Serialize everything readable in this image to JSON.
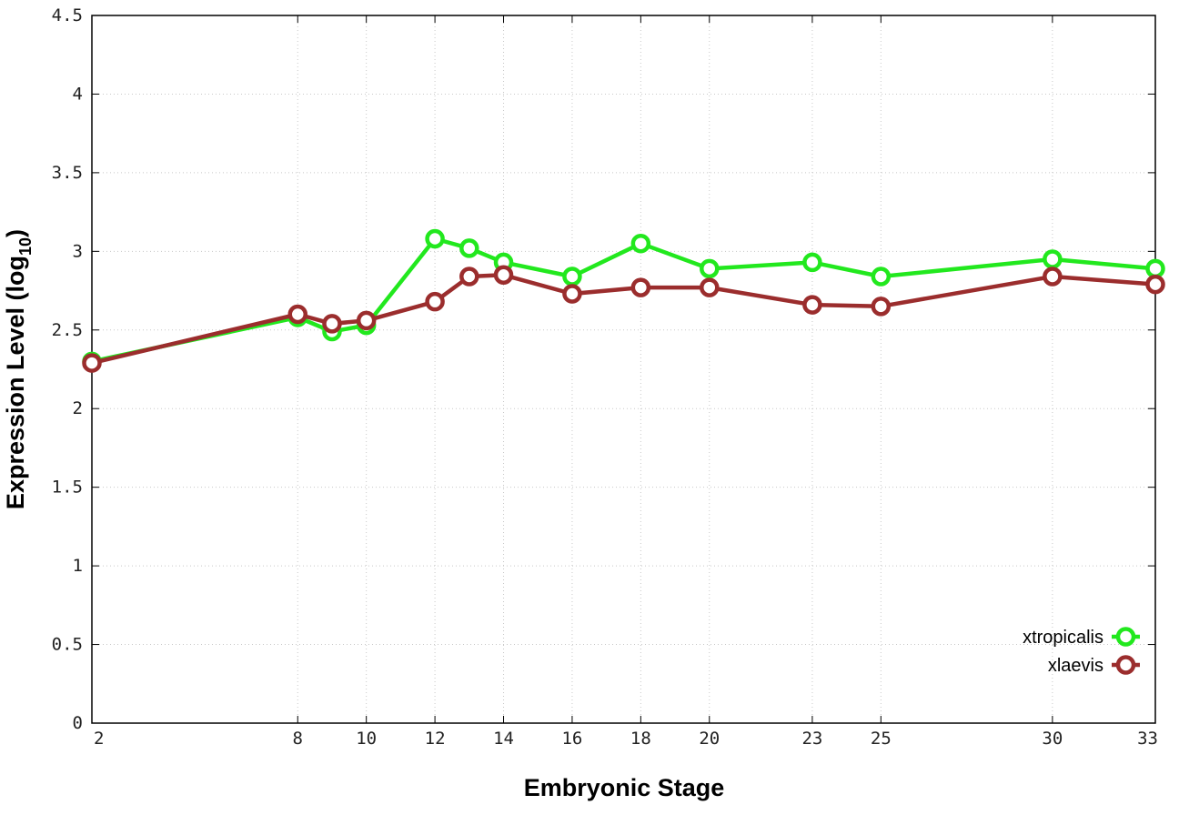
{
  "chart_data": {
    "type": "line",
    "title": "",
    "xlabel": "Embryonic Stage",
    "ylabel_main": "Expression Level (log",
    "ylabel_sub": "10",
    "ylabel_close": ")",
    "xlim": [
      2,
      33
    ],
    "ylim": [
      0,
      4.5
    ],
    "x_ticks": [
      2,
      8,
      10,
      12,
      14,
      16,
      18,
      20,
      23,
      25,
      30,
      33
    ],
    "x_tick_labels": [
      "2",
      "8",
      "10",
      "12",
      "14",
      "16",
      "18",
      "20",
      "23",
      "25",
      "30",
      "33"
    ],
    "y_ticks": [
      0,
      0.5,
      1,
      1.5,
      2,
      2.5,
      3,
      3.5,
      4,
      4.5
    ],
    "y_tick_labels": [
      "0",
      "0.5",
      "1",
      "1.5",
      "2",
      "2.5",
      "3",
      "3.5",
      "4",
      "4.5"
    ],
    "grid": true,
    "legend_position": "bottom-right",
    "series": [
      {
        "name": "xtropicalis",
        "color": "#22e81e",
        "x": [
          2,
          8,
          9,
          10,
          12,
          13,
          14,
          16,
          18,
          20,
          23,
          25,
          30,
          33
        ],
        "y": [
          2.3,
          2.58,
          2.49,
          2.53,
          3.08,
          3.02,
          2.93,
          2.84,
          3.05,
          2.89,
          2.93,
          2.84,
          2.95,
          2.89
        ]
      },
      {
        "name": "xlaevis",
        "color": "#9b2d2d",
        "x": [
          2,
          8,
          9,
          10,
          12,
          13,
          14,
          16,
          18,
          20,
          23,
          25,
          30,
          33
        ],
        "y": [
          2.29,
          2.6,
          2.54,
          2.56,
          2.68,
          2.84,
          2.85,
          2.73,
          2.77,
          2.77,
          2.66,
          2.65,
          2.84,
          2.79
        ]
      }
    ]
  }
}
